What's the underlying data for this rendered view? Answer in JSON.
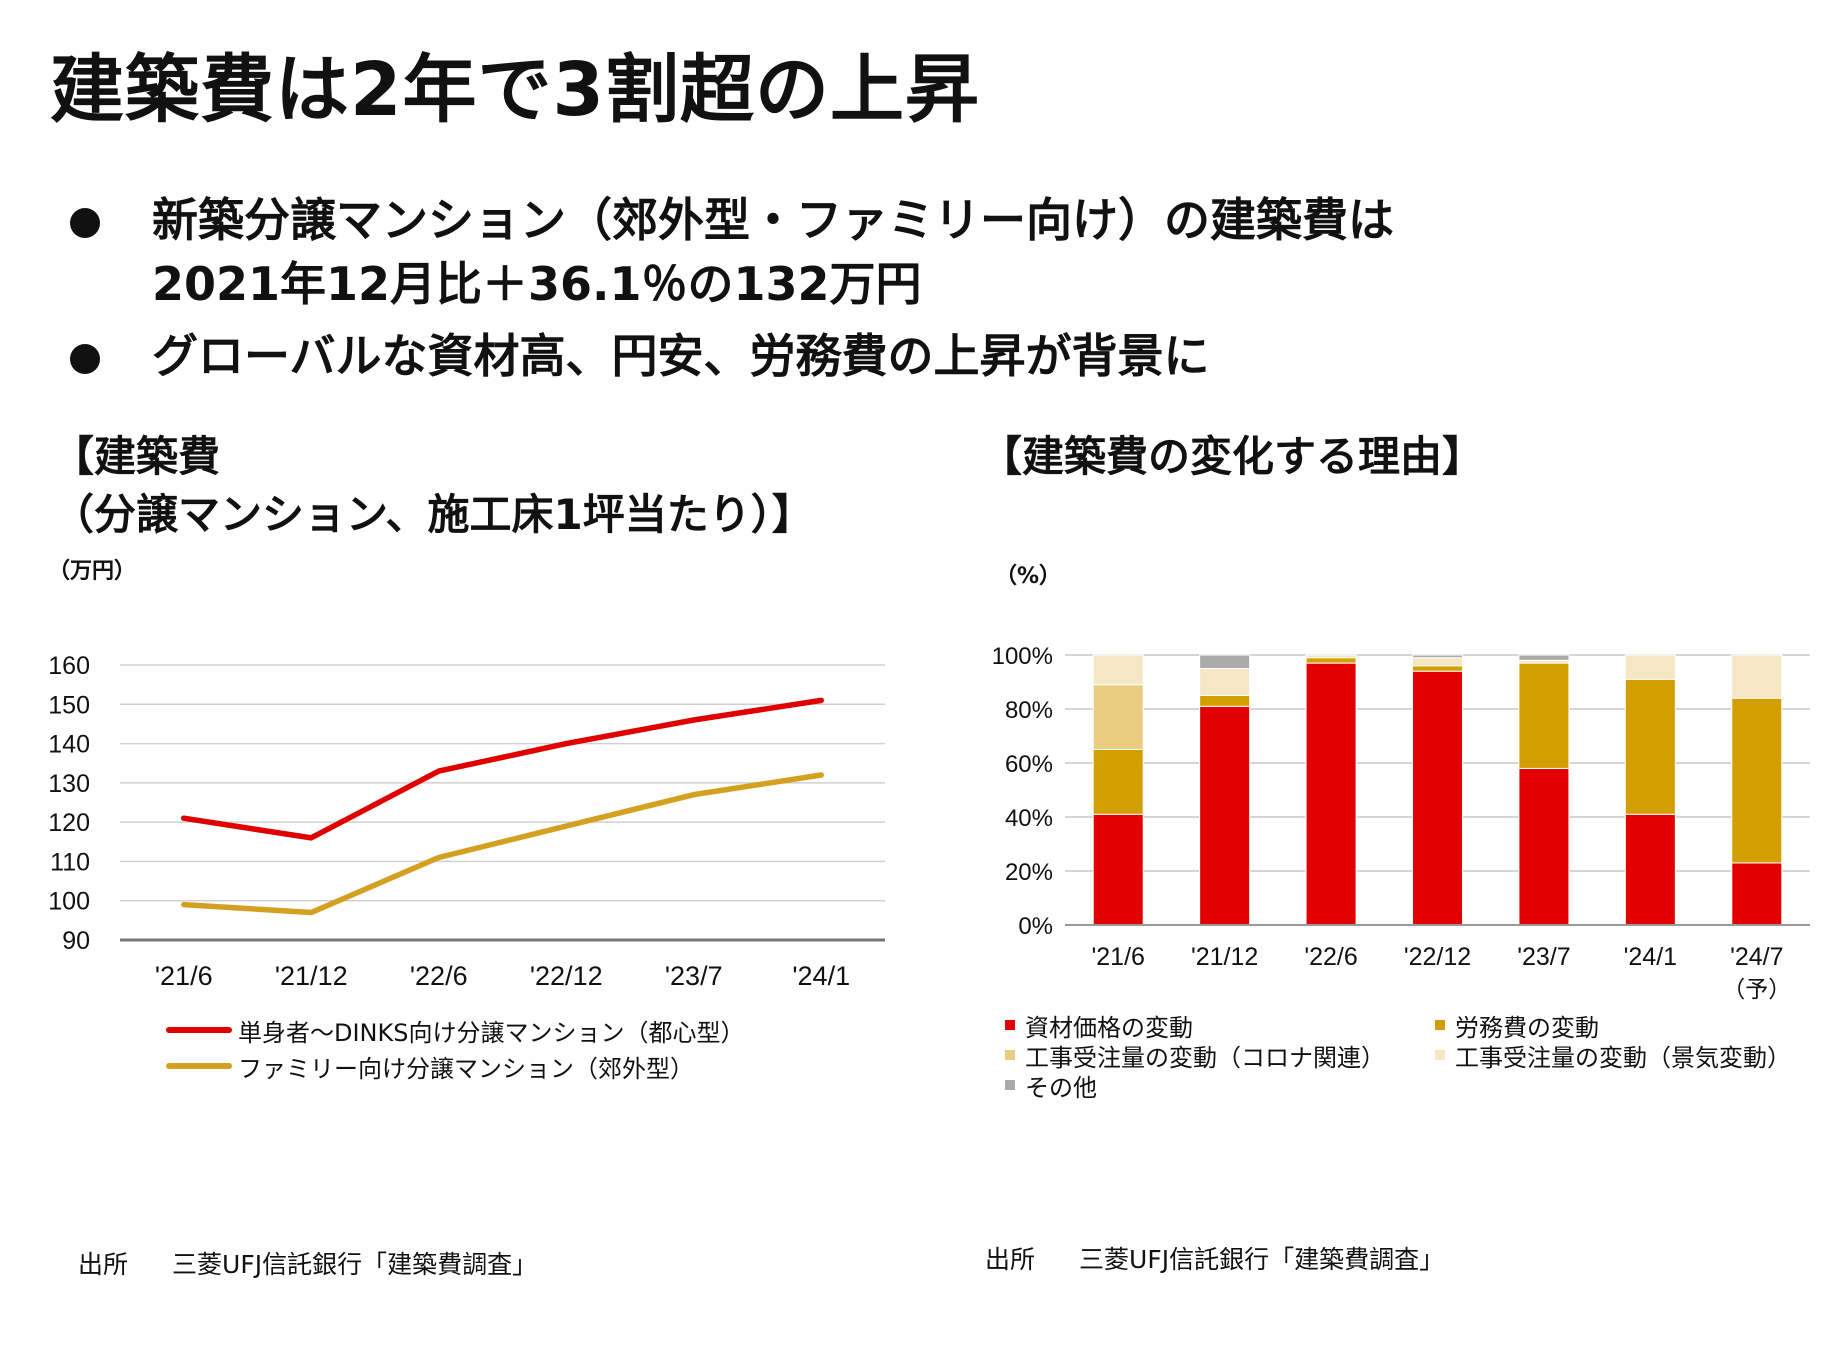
{
  "title": "建築費は2年で3割超の上昇",
  "bullets": [
    {
      "line1": "新築分譲マンション（郊外型・ファミリー向け）の建築費は",
      "line2": "2021年12月比＋36.1％の132万円"
    },
    {
      "line1": "グローバルな資材高、円安、労務費の上昇が背景に",
      "line2": ""
    }
  ],
  "left_panel": {
    "title_line1": "【建築費",
    "title_line2": "（分譲マンション、施工床1坪当たり）】",
    "unit": "（万円）",
    "source_label": "出所",
    "source_text": "三菱UFJ信託銀行「建築費調査」"
  },
  "right_panel": {
    "title": "【建築費の変化する理由】",
    "unit": "（%）",
    "source_label": "出所",
    "source_text": "三菱UFJ信託銀行「建築費調査」",
    "last_category_note": "（予）"
  },
  "chart_data": [
    {
      "type": "line",
      "title": "建築費（分譲マンション、施工床1坪当たり）",
      "ylabel": "（万円）",
      "categories": [
        "'21/6",
        "'21/12",
        "'22/6",
        "'22/12",
        "'23/7",
        "'24/1"
      ],
      "ylim": [
        90,
        160
      ],
      "yticks": [
        90,
        100,
        110,
        120,
        130,
        140,
        150,
        160
      ],
      "series": [
        {
          "name": "単身者～DINKS向け分譲マンション（都心型）",
          "color": "#e00000",
          "values": [
            121,
            116,
            133,
            140,
            146,
            151
          ]
        },
        {
          "name": "ファミリー向け分譲マンション（郊外型）",
          "color": "#d4a020",
          "values": [
            99,
            97,
            111,
            119,
            127,
            132
          ]
        }
      ]
    },
    {
      "type": "bar",
      "stacked": true,
      "title": "建築費の変化する理由",
      "ylabel": "（%）",
      "categories": [
        "'21/6",
        "'21/12",
        "'22/6",
        "'22/12",
        "'23/7",
        "'24/1",
        "'24/7"
      ],
      "ylim": [
        0,
        100
      ],
      "yticks": [
        "0%",
        "20%",
        "40%",
        "60%",
        "80%",
        "100%"
      ],
      "series": [
        {
          "name": "資材価格の変動",
          "color": "#e20000",
          "values": [
            41,
            81,
            97,
            94,
            58,
            41,
            23
          ]
        },
        {
          "name": "労務費の変動",
          "color": "#d39f00",
          "values": [
            24,
            4,
            2,
            2,
            39,
            50,
            61
          ]
        },
        {
          "name": "工事受注量の変動（コロナ関連）",
          "color": "#e9cc80",
          "values": [
            24,
            0,
            0,
            0,
            0,
            0,
            0
          ]
        },
        {
          "name": "工事受注量の変動（景気変動）",
          "color": "#f5e7c4",
          "values": [
            11,
            10,
            1,
            3,
            1,
            9,
            16
          ]
        },
        {
          "name": "その他",
          "color": "#aaaaaa",
          "values": [
            0,
            5,
            0,
            1,
            2,
            0,
            0
          ]
        }
      ]
    }
  ]
}
